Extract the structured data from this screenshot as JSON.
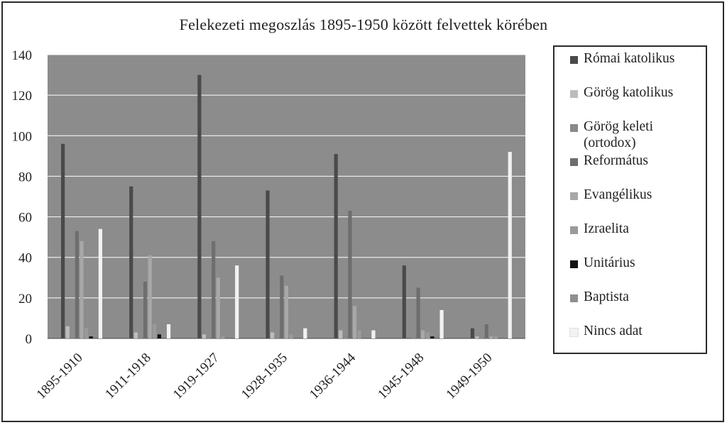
{
  "chart_data": {
    "type": "bar",
    "title": "Felekezeti megoszlás 1895-1950 között felvettek körében",
    "categories": [
      "1895-1910",
      "1911-1918",
      "1919-1927",
      "1928-1935",
      "1936-1944",
      "1945-1948",
      "1949-1950"
    ],
    "ylim": [
      0,
      140
    ],
    "yticks": [
      0,
      20,
      40,
      60,
      80,
      100,
      120,
      140
    ],
    "grid": true,
    "legend_position": "right",
    "series": [
      {
        "name": "Római katolikus",
        "color": "#4a4a4a",
        "values": [
          96,
          75,
          130,
          73,
          91,
          36,
          5
        ]
      },
      {
        "name": "Görög katolikus",
        "color": "#bdbdbd",
        "values": [
          6,
          3,
          2,
          3,
          4,
          0,
          1
        ]
      },
      {
        "name": "Görög keleti (ortodox)",
        "color": "#8a8a8a",
        "values": [
          1,
          1,
          1,
          1,
          1,
          1,
          1
        ]
      },
      {
        "name": "Református",
        "color": "#6e6e6e",
        "values": [
          53,
          28,
          48,
          31,
          63,
          25,
          7
        ]
      },
      {
        "name": "Evangélikus",
        "color": "#a8a8a8",
        "values": [
          48,
          41,
          30,
          26,
          16,
          4,
          1
        ]
      },
      {
        "name": "Izraelita",
        "color": "#9a9a9a",
        "values": [
          5,
          7,
          1,
          2,
          4,
          3,
          1
        ]
      },
      {
        "name": "Unitárius",
        "color": "#111111",
        "values": [
          1,
          2,
          0,
          0,
          0,
          1,
          0
        ]
      },
      {
        "name": "Baptista",
        "color": "#8f8f8f",
        "values": [
          0,
          0,
          0,
          0,
          0,
          0,
          0
        ]
      },
      {
        "name": "Nincs adat",
        "color": "#f2f2f2",
        "values": [
          54,
          7,
          36,
          5,
          4,
          14,
          92
        ]
      }
    ]
  }
}
